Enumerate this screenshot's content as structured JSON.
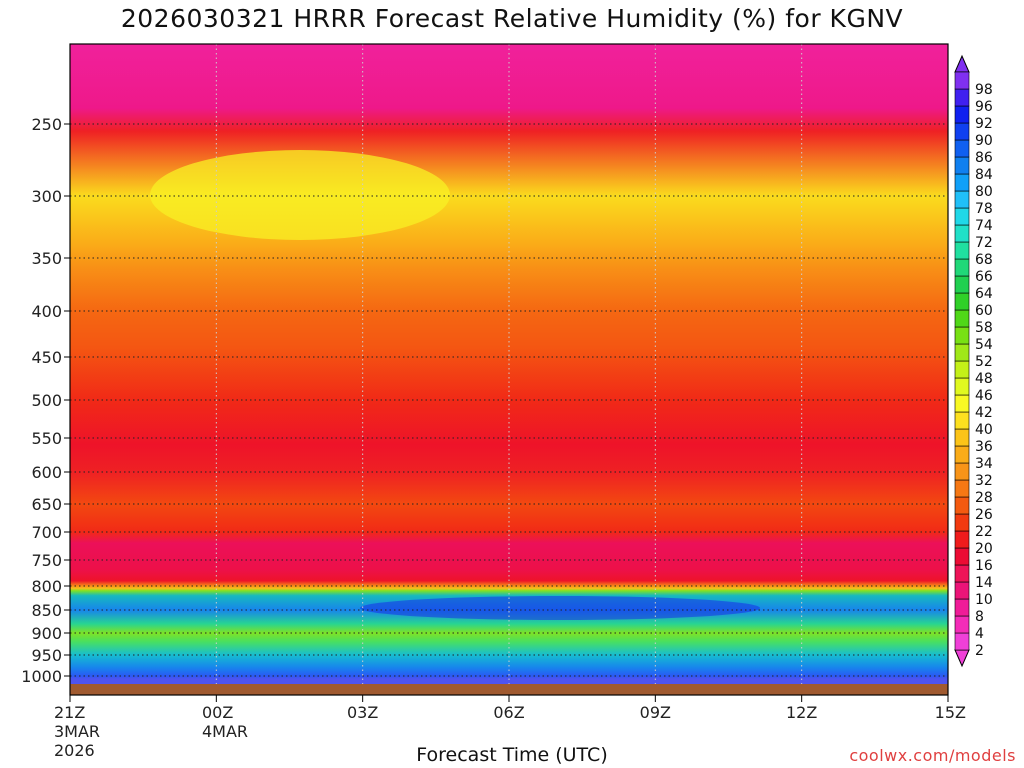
{
  "chart_data": {
    "type": "heatmap",
    "title": "2026030321 HRRR Forecast Relative Humidity (%) for KGNV",
    "xlabel": "Forecast Time (UTC)",
    "x_ticks": [
      {
        "label": "21Z",
        "sub1": "3MAR",
        "sub2": "2026",
        "hours": 0
      },
      {
        "label": "00Z",
        "sub1": "4MAR",
        "sub2": "",
        "hours": 3
      },
      {
        "label": "03Z",
        "sub1": "",
        "sub2": "",
        "hours": 6
      },
      {
        "label": "06Z",
        "sub1": "",
        "sub2": "",
        "hours": 9
      },
      {
        "label": "09Z",
        "sub1": "",
        "sub2": "",
        "hours": 12
      },
      {
        "label": "12Z",
        "sub1": "",
        "sub2": "",
        "hours": 15
      },
      {
        "label": "15Z",
        "sub1": "",
        "sub2": "",
        "hours": 18
      }
    ],
    "y_ticks": [
      250,
      300,
      350,
      400,
      450,
      500,
      550,
      600,
      650,
      700,
      750,
      800,
      850,
      900,
      950,
      1000
    ],
    "y_range_hpa": [
      1030,
      200
    ],
    "colorbar": {
      "labels": [
        2,
        4,
        8,
        10,
        14,
        16,
        20,
        22,
        26,
        28,
        32,
        34,
        36,
        40,
        42,
        46,
        48,
        52,
        54,
        58,
        60,
        64,
        66,
        68,
        72,
        74,
        78,
        80,
        84,
        86,
        90,
        92,
        96,
        98
      ],
      "colors": [
        "#f040d8",
        "#f42cb8",
        "#f01c98",
        "#ec1478",
        "#ee1458",
        "#ec0c34",
        "#f01c1c",
        "#f23a10",
        "#f45a10",
        "#f67814",
        "#f89418",
        "#faac18",
        "#fcc418",
        "#fde020",
        "#f8f824",
        "#e0f820",
        "#c4f018",
        "#a0e818",
        "#78e014",
        "#50d818",
        "#30d028",
        "#20d050",
        "#20d878",
        "#20e0a0",
        "#20e0c8",
        "#20d8e8",
        "#20c0f8",
        "#10a0f8",
        "#1080f0",
        "#1060f0",
        "#1040f0",
        "#1020f0",
        "#4020f0",
        "#8030f0"
      ]
    },
    "profile_hpa": [
      200,
      240,
      255,
      300,
      340,
      360,
      400,
      440,
      500,
      560,
      600,
      650,
      700,
      720,
      770,
      790,
      800,
      805,
      810,
      820,
      850,
      880,
      900,
      920,
      950,
      980,
      1000,
      1010,
      1015
    ],
    "profile_rh": [
      6,
      8,
      18,
      38,
      33,
      30,
      26,
      24,
      20,
      16,
      18,
      22,
      20,
      12,
      14,
      16,
      30,
      44,
      60,
      80,
      90,
      76,
      60,
      70,
      82,
      90,
      96,
      98,
      98
    ]
  },
  "credit": "coolwx.com/models"
}
